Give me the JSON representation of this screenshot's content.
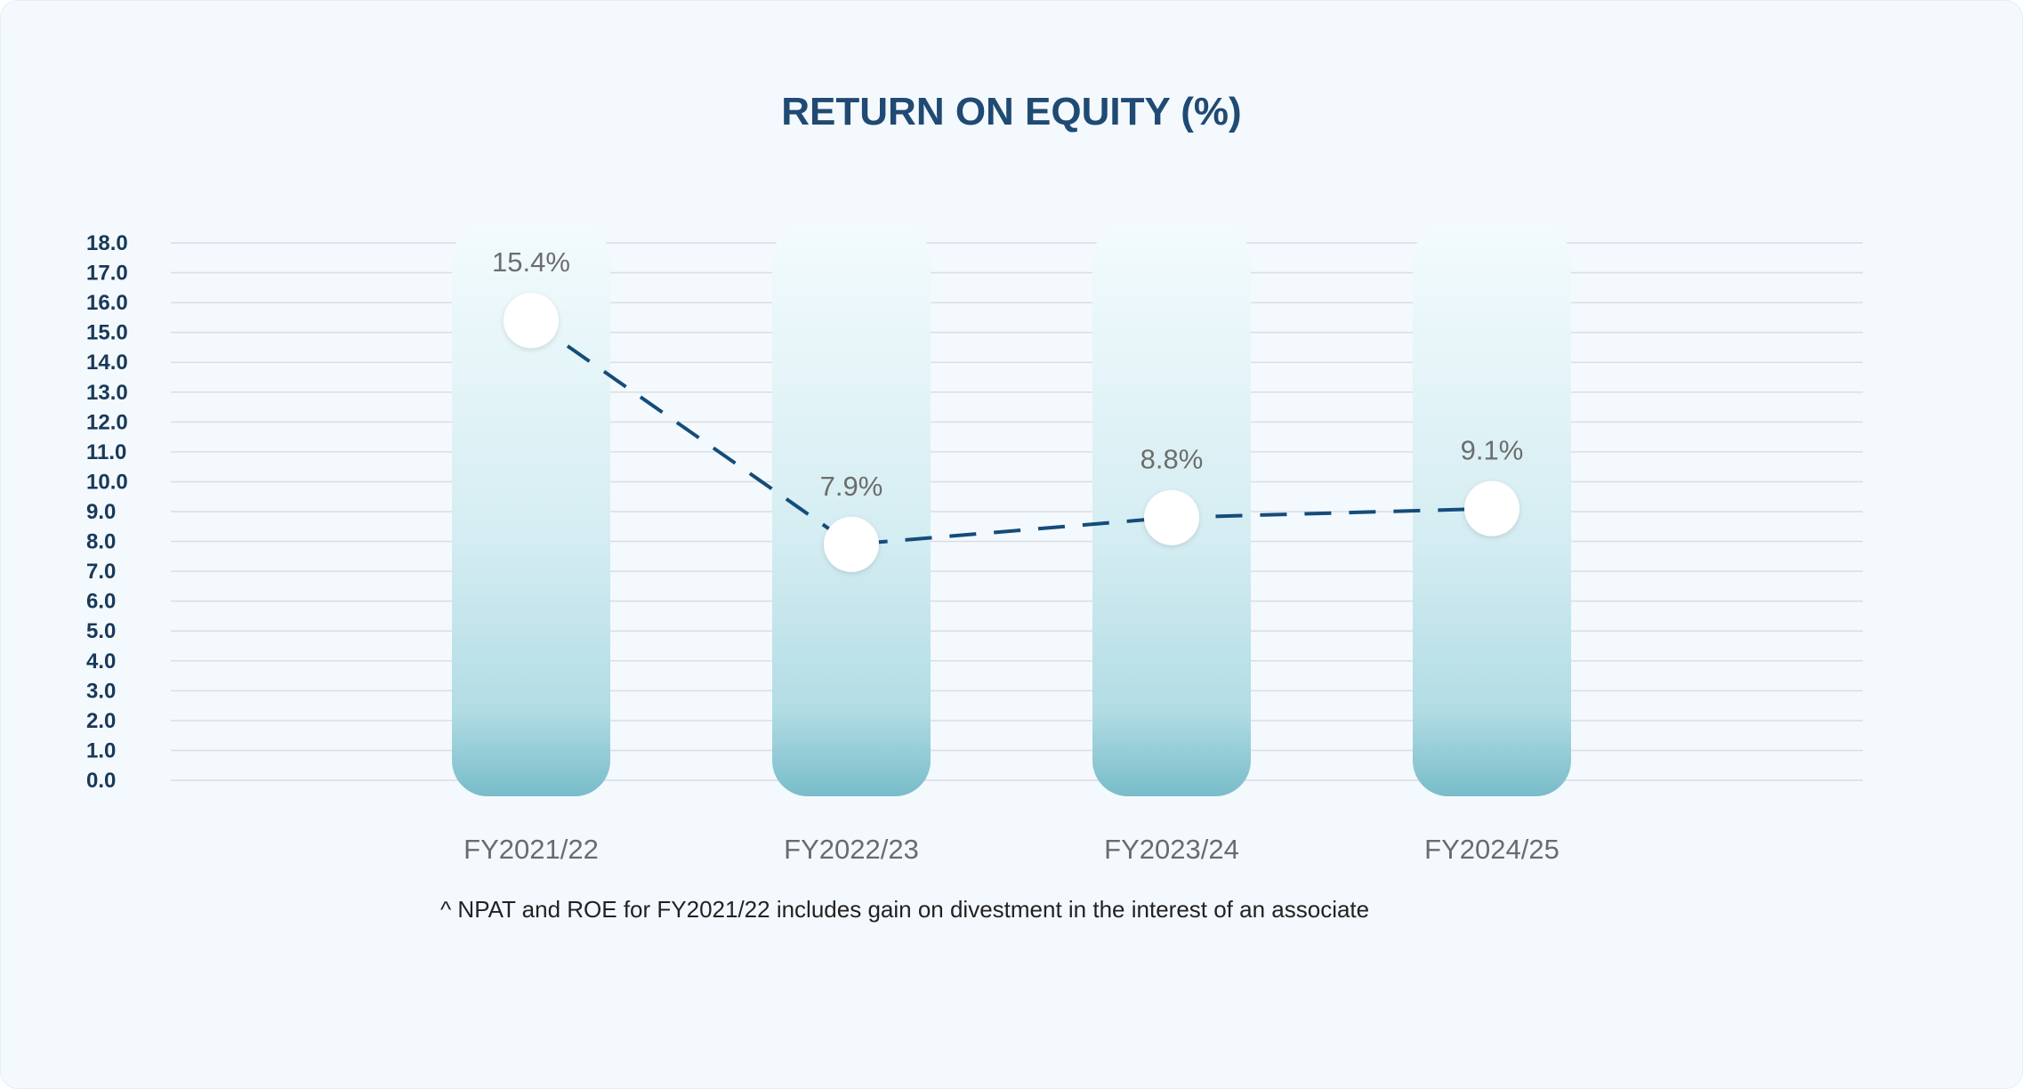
{
  "chart_data": {
    "type": "line",
    "title": "RETURN ON EQUITY (%)",
    "categories": [
      "FY2021/22",
      "FY2022/23",
      "FY2023/24",
      "FY2024/25"
    ],
    "values": [
      15.4,
      7.9,
      8.8,
      9.1
    ],
    "data_labels": [
      "15.4%",
      "7.9%",
      "8.8%",
      "9.1%"
    ],
    "y_ticks": [
      "0.0",
      "1.0",
      "2.0",
      "3.0",
      "4.0",
      "5.0",
      "6.0",
      "7.0",
      "8.0",
      "9.0",
      "10.0",
      "11.0",
      "12.0",
      "13.0",
      "14.0",
      "15.0",
      "16.0",
      "17.0",
      "18.0"
    ],
    "ylim": [
      0,
      18
    ],
    "xlabel": "",
    "ylabel": "",
    "grid": true,
    "line_style": "dashed",
    "footnote": "^ NPAT and ROE for FY2021/22 includes gain on divestment in the interest of an associate",
    "colors": {
      "title": "#1f4a73",
      "line": "#144c7a",
      "column_top": "#f3fbfd",
      "column_bottom": "#78bcca",
      "marker": "#ffffff",
      "grid": "#d9dee3"
    }
  }
}
